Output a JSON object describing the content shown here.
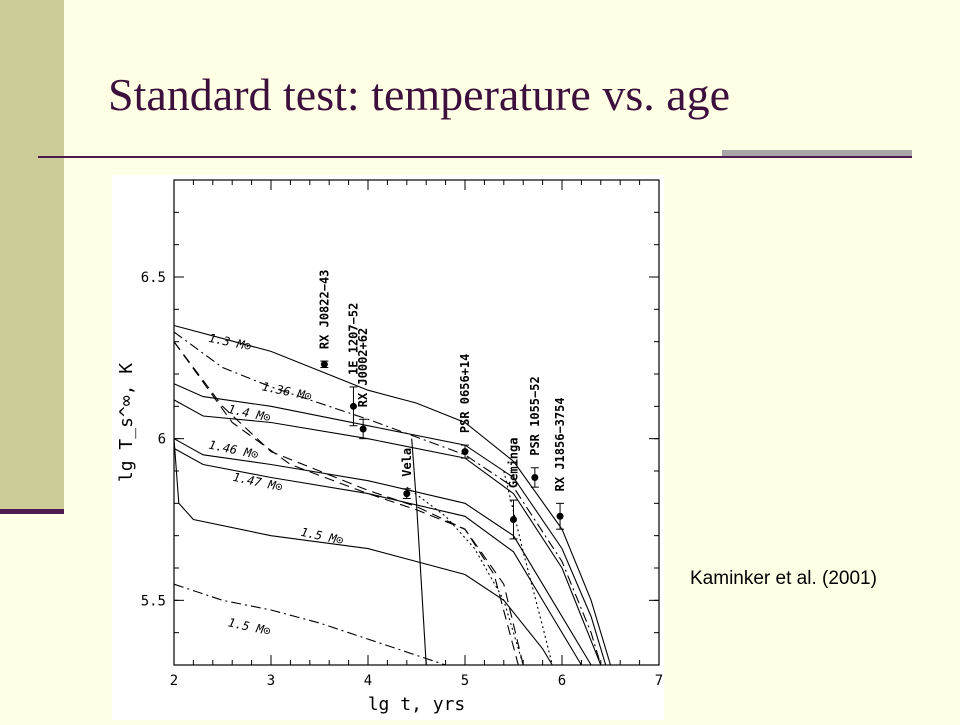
{
  "slide": {
    "title": "Standard test: temperature vs. age",
    "credit": "Kaminker et al. (2001)"
  },
  "colors": {
    "sidebar": "#cccc99",
    "title": "#3d0f3d",
    "rule": "#4d1a4d",
    "accent_rule": "#a6a6a6",
    "background": "#ffffe6"
  },
  "chart_data": {
    "type": "line",
    "xlabel": "lg t, yrs",
    "ylabel": "lg T_s^∞, K",
    "xlim": [
      2,
      7
    ],
    "ylim": [
      5.3,
      6.8
    ],
    "xticks": [
      "2",
      "3",
      "4",
      "5",
      "6",
      "7"
    ],
    "yticks": [
      "5.5",
      "6",
      "6.5"
    ],
    "grid": false,
    "curve_labels": [
      "1.3 M⊙",
      "1.36 M⊙",
      "1.4 M⊙",
      "1.46 M⊙",
      "1.47 M⊙",
      "1.5 M⊙",
      "1.5 M⊙"
    ],
    "series": [
      {
        "name": "1.3 M⊙",
        "style": "solid",
        "points": [
          [
            2,
            6.35
          ],
          [
            3,
            6.27
          ],
          [
            4,
            6.15
          ],
          [
            4.5,
            6.11
          ],
          [
            5,
            6.05
          ],
          [
            5.5,
            5.93
          ],
          [
            6,
            5.72
          ],
          [
            6.3,
            5.5
          ],
          [
            6.5,
            5.3
          ]
        ]
      },
      {
        "name": "1.36 M⊙",
        "style": "solid",
        "points": [
          [
            2,
            6.17
          ],
          [
            2.3,
            6.13
          ],
          [
            3,
            6.1
          ],
          [
            4,
            6.04
          ],
          [
            5,
            5.98
          ],
          [
            5.5,
            5.88
          ],
          [
            6,
            5.66
          ],
          [
            6.3,
            5.45
          ],
          [
            6.45,
            5.3
          ]
        ]
      },
      {
        "name": "1.4 M⊙",
        "style": "solid",
        "points": [
          [
            2,
            6.12
          ],
          [
            2.3,
            6.07
          ],
          [
            3,
            6.05
          ],
          [
            4,
            6.0
          ],
          [
            5,
            5.94
          ],
          [
            5.5,
            5.83
          ],
          [
            6,
            5.6
          ],
          [
            6.2,
            5.45
          ],
          [
            6.4,
            5.3
          ]
        ]
      },
      {
        "name": "1.46 M⊙",
        "style": "solid",
        "points": [
          [
            2,
            6.0
          ],
          [
            2.3,
            5.95
          ],
          [
            3,
            5.92
          ],
          [
            4,
            5.87
          ],
          [
            5,
            5.8
          ],
          [
            5.5,
            5.7
          ],
          [
            5.9,
            5.5
          ],
          [
            6.3,
            5.3
          ]
        ]
      },
      {
        "name": "1.47 M⊙",
        "style": "solid",
        "points": [
          [
            2,
            5.97
          ],
          [
            2.3,
            5.92
          ],
          [
            3,
            5.88
          ],
          [
            4,
            5.83
          ],
          [
            5,
            5.76
          ],
          [
            5.5,
            5.65
          ],
          [
            5.9,
            5.45
          ],
          [
            6.2,
            5.3
          ]
        ]
      },
      {
        "name": "1.5 M⊙",
        "style": "solid",
        "points": [
          [
            2,
            6.0
          ],
          [
            2.05,
            5.8
          ],
          [
            2.2,
            5.75
          ],
          [
            3,
            5.7
          ],
          [
            4,
            5.66
          ],
          [
            5,
            5.58
          ],
          [
            5.4,
            5.5
          ],
          [
            5.8,
            5.35
          ],
          [
            5.9,
            5.3
          ]
        ]
      },
      {
        "name": "1.5 M⊙",
        "style": "dashdot",
        "points": [
          [
            2,
            5.55
          ],
          [
            2.5,
            5.5
          ],
          [
            3,
            5.47
          ],
          [
            3.5,
            5.43
          ],
          [
            4,
            5.38
          ],
          [
            4.5,
            5.33
          ],
          [
            4.8,
            5.3
          ]
        ]
      },
      {
        "name": "",
        "style": "dashdot",
        "points": [
          [
            2,
            6.33
          ],
          [
            2.5,
            6.22
          ],
          [
            3,
            6.16
          ],
          [
            4,
            6.06
          ],
          [
            5,
            5.95
          ],
          [
            5.5,
            5.85
          ],
          [
            6,
            5.62
          ],
          [
            6.3,
            5.4
          ],
          [
            6.4,
            5.3
          ]
        ]
      },
      {
        "name": "",
        "style": "dashed",
        "points": [
          [
            2,
            6.3
          ],
          [
            2.5,
            6.1
          ],
          [
            3,
            5.96
          ],
          [
            3.5,
            5.9
          ],
          [
            4,
            5.84
          ],
          [
            4.5,
            5.79
          ],
          [
            5,
            5.72
          ],
          [
            5.4,
            5.55
          ],
          [
            5.6,
            5.3
          ]
        ]
      },
      {
        "name": "",
        "style": "dashed",
        "points": [
          [
            2,
            6.3
          ],
          [
            2.6,
            6.05
          ],
          [
            3.2,
            5.92
          ],
          [
            4,
            5.83
          ],
          [
            4.5,
            5.78
          ],
          [
            5,
            5.72
          ],
          [
            5.3,
            5.58
          ],
          [
            5.55,
            5.3
          ]
        ]
      },
      {
        "name": "",
        "style": "dotted",
        "points": [
          [
            4.4,
            5.85
          ],
          [
            4.8,
            5.76
          ],
          [
            5.1,
            5.66
          ],
          [
            5.4,
            5.5
          ],
          [
            5.6,
            5.3
          ]
        ]
      },
      {
        "name": "",
        "style": "dotted",
        "points": [
          [
            5.4,
            5.9
          ],
          [
            5.6,
            5.65
          ],
          [
            5.8,
            5.42
          ],
          [
            5.9,
            5.3
          ]
        ]
      },
      {
        "name": "",
        "style": "solid",
        "points": [
          [
            4.45,
            6.0
          ],
          [
            4.5,
            5.8
          ],
          [
            4.55,
            5.55
          ],
          [
            4.6,
            5.3
          ]
        ]
      }
    ],
    "observations": [
      {
        "name": "RX J0822−43",
        "x": 3.55,
        "y": 6.23,
        "err": 0.01
      },
      {
        "name": "1E 1207−52",
        "x": 3.85,
        "y": 6.1,
        "err": 0.06
      },
      {
        "name": "RX J0002+62",
        "x": 3.95,
        "y": 6.03,
        "err": 0.03
      },
      {
        "name": "Vela",
        "x": 4.4,
        "y": 5.83,
        "err": 0.015
      },
      {
        "name": "PSR 0656+14",
        "x": 5.0,
        "y": 5.96,
        "err": 0.02
      },
      {
        "name": "Geminga",
        "x": 5.5,
        "y": 5.75,
        "err": 0.06
      },
      {
        "name": "PSR 1055−52",
        "x": 5.72,
        "y": 5.88,
        "err": 0.03
      },
      {
        "name": "RX J1856−3754",
        "x": 5.98,
        "y": 5.76,
        "err": 0.04
      }
    ]
  }
}
